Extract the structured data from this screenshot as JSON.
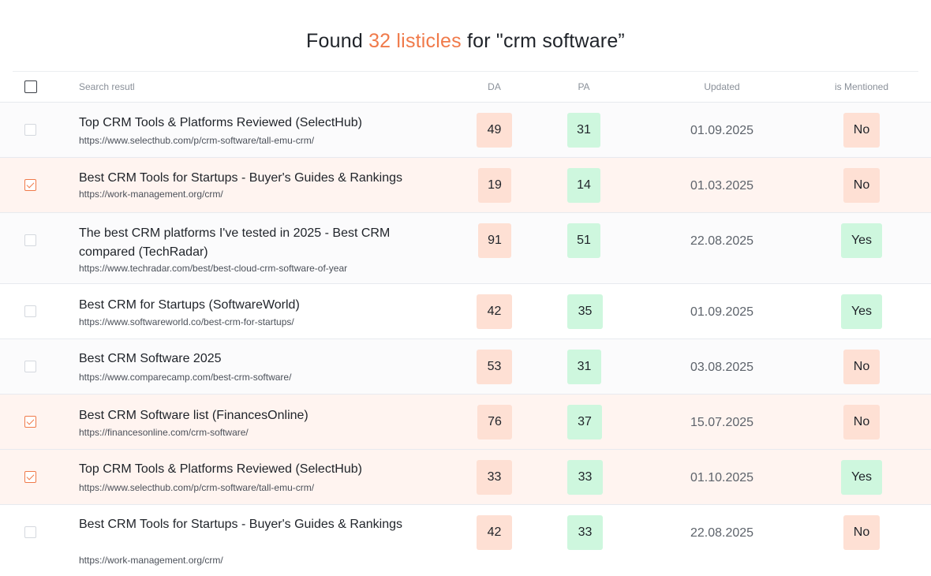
{
  "heading": {
    "prefix": "Found ",
    "accent": "32 listicles",
    "suffix": " for \"crm software”"
  },
  "colors": {
    "accent": "#f07a4a",
    "da_badge": "#fee0d4",
    "pa_badge_yes": "#cef7de",
    "selected_row": "#fff4f0"
  },
  "columns": {
    "search_result": "Search resutl",
    "da": "DA",
    "pa": "PA",
    "updated": "Updated",
    "mentioned": "is Mentioned"
  },
  "rows": [
    {
      "title": "Top CRM Tools & Platforms Reviewed (SelectHub)",
      "url": "https://www.selecthub.com/p/crm-software/tall-emu-crm/",
      "da": "49",
      "pa": "31",
      "updated": "01.09.2025",
      "mentioned": "No",
      "checked": false
    },
    {
      "title": "Best CRM Tools for Startups - Buyer's Guides & Rankings",
      "url": "https://work-management.org/crm/",
      "da": "19",
      "pa": "14",
      "updated": "01.03.2025",
      "mentioned": "No",
      "checked": true
    },
    {
      "title": "The best CRM platforms I've tested in 2025 - Best CRM compared (TechRadar)",
      "url": "https://www.techradar.com/best/best-cloud-crm-software-of-year",
      "da": "91",
      "pa": "51",
      "updated": "22.08.2025",
      "mentioned": "Yes",
      "checked": false
    },
    {
      "title": "Best CRM for Startups (SoftwareWorld)",
      "url": "https://www.softwareworld.co/best-crm-for-startups/",
      "da": "42",
      "pa": "35",
      "updated": "01.09.2025",
      "mentioned": "Yes",
      "checked": false
    },
    {
      "title": "Best CRM Software 2025",
      "url": "https://www.comparecamp.com/best-crm-software/",
      "da": "53",
      "pa": "31",
      "updated": "03.08.2025",
      "mentioned": "No",
      "checked": false
    },
    {
      "title": "Best CRM Software list (FinancesOnline)",
      "url": "https://financesonline.com/crm-software/",
      "da": "76",
      "pa": "37",
      "updated": "15.07.2025",
      "mentioned": "No",
      "checked": true
    },
    {
      "title": "Top CRM Tools & Platforms Reviewed (SelectHub)",
      "url": "https://www.selecthub.com/p/crm-software/tall-emu-crm/",
      "da": "33",
      "pa": "33",
      "updated": "01.10.2025",
      "mentioned": "Yes",
      "checked": true
    },
    {
      "title": "Best CRM Tools for Startups - Buyer's Guides & Rankings",
      "url": "https://work-management.org/crm/",
      "da": "42",
      "pa": "33",
      "updated": "22.08.2025",
      "mentioned": "No",
      "checked": false
    }
  ]
}
